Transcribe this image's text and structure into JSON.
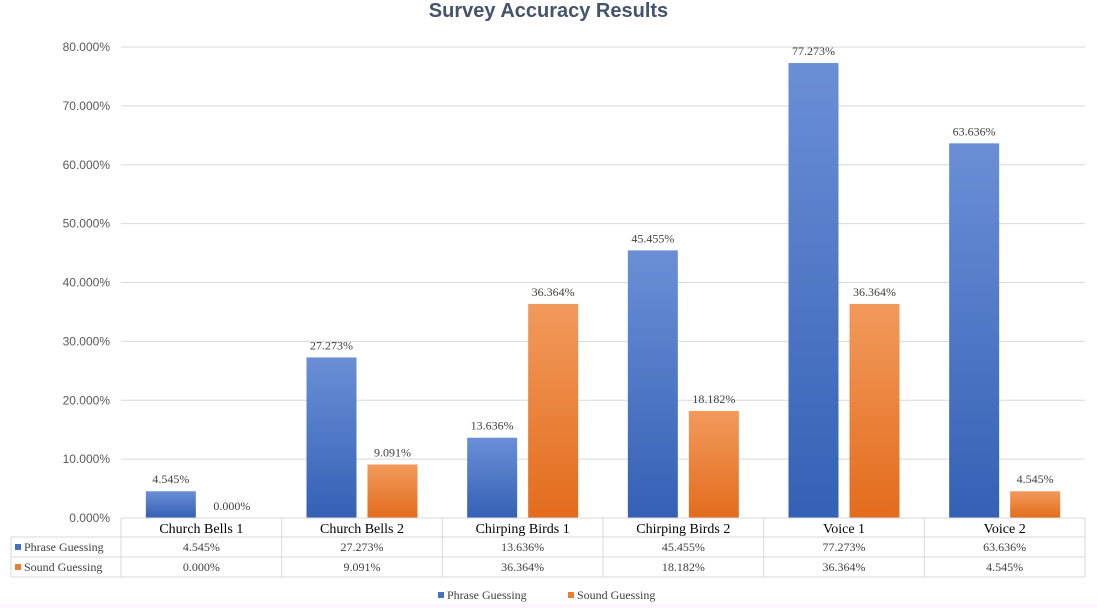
{
  "colors": {
    "phrase": "#4472c4",
    "sound": "#ed7d31",
    "grid": "#d9d9d9",
    "axis_text": "#595959",
    "title": "#44546a"
  },
  "chart_data": {
    "type": "bar",
    "title": "Survey Accuracy Results",
    "categories": [
      "Church Bells 1",
      "Church Bells 2",
      "Chirping Birds 1",
      "Chirping Birds 2",
      "Voice 1",
      "Voice 2"
    ],
    "series": [
      {
        "name": "Phrase Guessing",
        "values": [
          4.545,
          27.273,
          13.636,
          45.455,
          77.273,
          63.636
        ],
        "labels": [
          "4.545%",
          "27.273%",
          "13.636%",
          "45.455%",
          "77.273%",
          "63.636%"
        ]
      },
      {
        "name": "Sound Guessing",
        "values": [
          0.0,
          9.091,
          36.364,
          18.182,
          36.364,
          4.545
        ],
        "labels": [
          "0.000%",
          "9.091%",
          "36.364%",
          "18.182%",
          "36.364%",
          "4.545%"
        ]
      }
    ],
    "ylim": [
      0,
      80
    ],
    "yticks": [
      "0.000%",
      "10.000%",
      "20.000%",
      "30.000%",
      "40.000%",
      "50.000%",
      "60.000%",
      "70.000%",
      "80.000%"
    ],
    "grid": true,
    "legend": "bottom",
    "data_table": true
  }
}
